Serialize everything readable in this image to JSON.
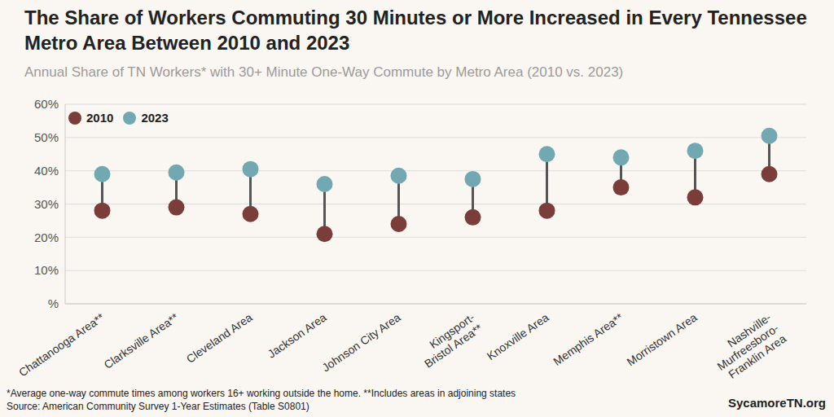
{
  "chart_data": {
    "type": "dumbbell",
    "title": "The Share of Workers Commuting 30 Minutes or More Increased in Every Tennessee Metro Area Between 2010 and 2023",
    "subtitle": "Annual Share of TN Workers* with 30+ Minute One-Way Commute by Metro Area (2010 vs. 2023)",
    "categories": [
      "Chattanooga Area**",
      "Clarksville Area**",
      "Cleveland Area",
      "Jackson Area",
      "Johnson City Area",
      "Kingsport-Bristol Area**",
      "Knoxville Area",
      "Memphis Area**",
      "Morristown Area",
      "Nashville-Murfreesboro-Franklin Area"
    ],
    "series": [
      {
        "name": "2010",
        "color": "#7b3d39",
        "values": [
          28,
          29,
          27,
          21,
          24,
          26,
          28,
          35,
          32,
          39
        ]
      },
      {
        "name": "2023",
        "color": "#72a8b2",
        "values": [
          39,
          39.5,
          40.5,
          36,
          38.5,
          37.5,
          45,
          44,
          46,
          50.5
        ]
      }
    ],
    "ylim": [
      0,
      60
    ],
    "yticks": [
      {
        "value": 0,
        "label": "%"
      },
      {
        "value": 10,
        "label": "10%"
      },
      {
        "value": 20,
        "label": "20%"
      },
      {
        "value": 30,
        "label": "30%"
      },
      {
        "value": 40,
        "label": "40%"
      },
      {
        "value": 50,
        "label": "50%"
      },
      {
        "value": 60,
        "label": "60%"
      }
    ],
    "grid": true,
    "legend": "top-left",
    "annotations": [
      "*Average one-way commute times among workers 16+ working outside the home. **Includes areas in adjoining states",
      "Source: American Community Survey 1-Year Estimates (Table S0801)",
      "SycamoreTN.org"
    ]
  }
}
